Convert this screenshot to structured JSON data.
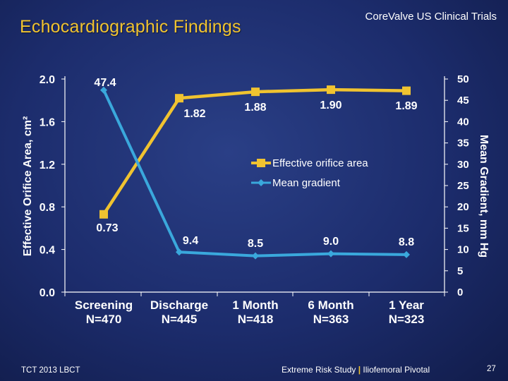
{
  "header": {
    "title": "Echocardiographic Findings",
    "brand": "CoreValve US Clinical Trials"
  },
  "footer": {
    "left": "TCT 2013 LBCT",
    "study": "Extreme Risk Study",
    "separator": "|",
    "subgroup": "Iliofemoral Pivotal",
    "page": "27"
  },
  "colors": {
    "eoa": "#f0c330",
    "gradient": "#3aa8dc",
    "axis": "#ffffff"
  },
  "chart_data": {
    "type": "line",
    "categories": [
      {
        "label": "Screening",
        "n": "N=470"
      },
      {
        "label": "Discharge",
        "n": "N=445"
      },
      {
        "label": "1 Month",
        "n": "N=418"
      },
      {
        "label": "6 Month",
        "n": "N=363"
      },
      {
        "label": "1 Year",
        "n": "N=323"
      }
    ],
    "ylabel_left": "Effective Orifice Area, cm²",
    "ylabel_right": "Mean Gradient, mm Hg",
    "ylim_left": [
      0,
      2.0
    ],
    "yticks_left": [
      "0.0",
      "0.4",
      "0.8",
      "1.2",
      "1.6",
      "2.0"
    ],
    "ylim_right": [
      0,
      50
    ],
    "yticks_right": [
      "0",
      "5",
      "10",
      "15",
      "20",
      "25",
      "30",
      "35",
      "40",
      "45",
      "50"
    ],
    "legend_position": "center-right",
    "grid": false,
    "series": [
      {
        "name": "Effective orifice area",
        "axis": "left",
        "marker": "square",
        "values": [
          0.73,
          1.82,
          1.88,
          1.9,
          1.89
        ],
        "labels": [
          "0.73",
          "1.82",
          "1.88",
          "1.90",
          "1.89"
        ]
      },
      {
        "name": "Mean gradient",
        "axis": "right",
        "marker": "diamond",
        "values": [
          47.4,
          9.4,
          8.5,
          9.0,
          8.8
        ],
        "labels": [
          "47.4",
          "9.4",
          "8.5",
          "9.0",
          "8.8"
        ]
      }
    ]
  }
}
